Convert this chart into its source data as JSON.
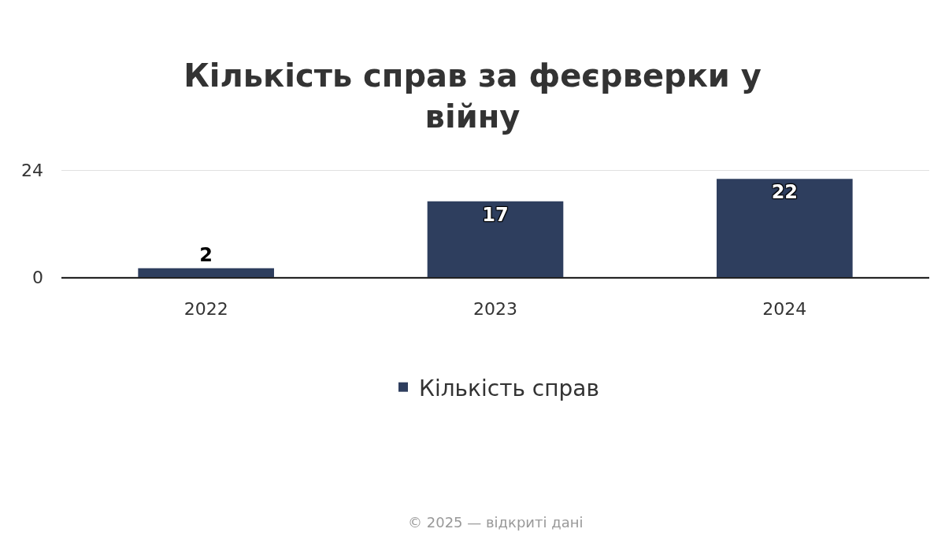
{
  "chart_data": {
    "type": "bar",
    "title": "Кількість справ за феєрверки у війну",
    "categories": [
      "2022",
      "2023",
      "2024"
    ],
    "series": [
      {
        "name": "Кількість справ",
        "color": "#2e3e5e",
        "values": [
          2,
          17,
          22
        ]
      }
    ],
    "ylim": [
      0,
      24
    ],
    "yticks": [
      0,
      24
    ],
    "grid": "y",
    "legend": "bottom",
    "data_labels": true,
    "annotations": [
      "© 2025 — відкриті дані"
    ]
  }
}
